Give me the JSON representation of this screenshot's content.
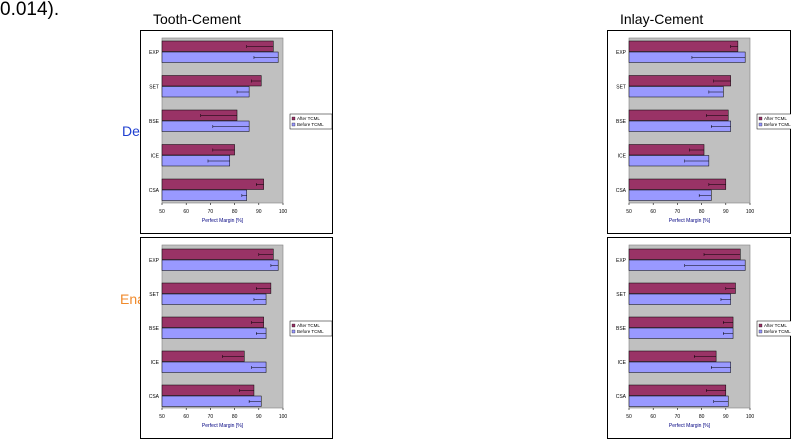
{
  "caption": "0.014).",
  "column_titles": [
    "Tooth-Cement",
    "Inlay-Cement"
  ],
  "row_labels": [
    {
      "text": "Dentin",
      "color": "#1f3fd0"
    },
    {
      "text": "Enamel",
      "color": "#f08a2c"
    }
  ],
  "colors": {
    "after": "#993366",
    "before": "#9999ff",
    "plot_bg": "#c0c0c0",
    "axis_label": "#000080"
  },
  "chart_data": [
    {
      "type": "bar",
      "orientation": "horizontal",
      "panel": "Tooth-Cement / Dentin",
      "categories": [
        "EXP",
        "SET",
        "BSE",
        "ICE",
        "CSA"
      ],
      "series": [
        {
          "name": "After TCML",
          "values": [
            96,
            91,
            81,
            80,
            92
          ],
          "errors": [
            11,
            4,
            15,
            9,
            3
          ]
        },
        {
          "name": "Before TCML",
          "values": [
            98,
            86,
            86,
            78,
            85
          ],
          "errors": [
            10,
            5,
            15,
            9,
            2
          ]
        }
      ],
      "xlabel": "Perfect Margin [%]",
      "xlim": [
        50,
        100
      ],
      "xticks": [
        50,
        60,
        70,
        80,
        90,
        100
      ],
      "grid": false,
      "legend_position": "right"
    },
    {
      "type": "bar",
      "orientation": "horizontal",
      "panel": "Inlay-Cement / Dentin",
      "categories": [
        "EXP",
        "SET",
        "BSE",
        "ICE",
        "CSA"
      ],
      "series": [
        {
          "name": "After TCML",
          "values": [
            95,
            92,
            91,
            81,
            90
          ],
          "errors": [
            3,
            7,
            9,
            6,
            7
          ]
        },
        {
          "name": "Before TCML",
          "values": [
            98,
            89,
            92,
            83,
            84
          ],
          "errors": [
            22,
            6,
            8,
            10,
            5
          ]
        }
      ],
      "xlabel": "Perfect Margin [%]",
      "xlim": [
        50,
        100
      ],
      "xticks": [
        50,
        60,
        70,
        80,
        90,
        100
      ],
      "grid": false,
      "legend_position": "right"
    },
    {
      "type": "bar",
      "orientation": "horizontal",
      "panel": "Tooth-Cement / Enamel",
      "categories": [
        "EXP",
        "SET",
        "BSE",
        "ICE",
        "CSA"
      ],
      "series": [
        {
          "name": "After TCML",
          "values": [
            96,
            95,
            92,
            84,
            88
          ],
          "errors": [
            6,
            6,
            5,
            9,
            6
          ]
        },
        {
          "name": "Before TCML",
          "values": [
            98,
            93,
            93,
            93,
            91
          ],
          "errors": [
            3,
            5,
            4,
            6,
            5
          ]
        }
      ],
      "xlabel": "Perfect Margin [%]",
      "xlim": [
        50,
        100
      ],
      "xticks": [
        50,
        60,
        70,
        80,
        90,
        100
      ],
      "grid": false,
      "legend_position": "right"
    },
    {
      "type": "bar",
      "orientation": "horizontal",
      "panel": "Inlay-Cement / Enamel",
      "categories": [
        "EXP",
        "SET",
        "BSE",
        "ICE",
        "CSA"
      ],
      "series": [
        {
          "name": "After TCML",
          "values": [
            96,
            94,
            93,
            86,
            90
          ],
          "errors": [
            15,
            4,
            4,
            9,
            8
          ]
        },
        {
          "name": "Before TCML",
          "values": [
            98,
            92,
            93,
            92,
            91
          ],
          "errors": [
            25,
            4,
            4,
            8,
            6
          ]
        }
      ],
      "xlabel": "Perfect Margin [%]",
      "xlim": [
        50,
        100
      ],
      "xticks": [
        50,
        60,
        70,
        80,
        90,
        100
      ],
      "grid": false,
      "legend_position": "right"
    }
  ]
}
